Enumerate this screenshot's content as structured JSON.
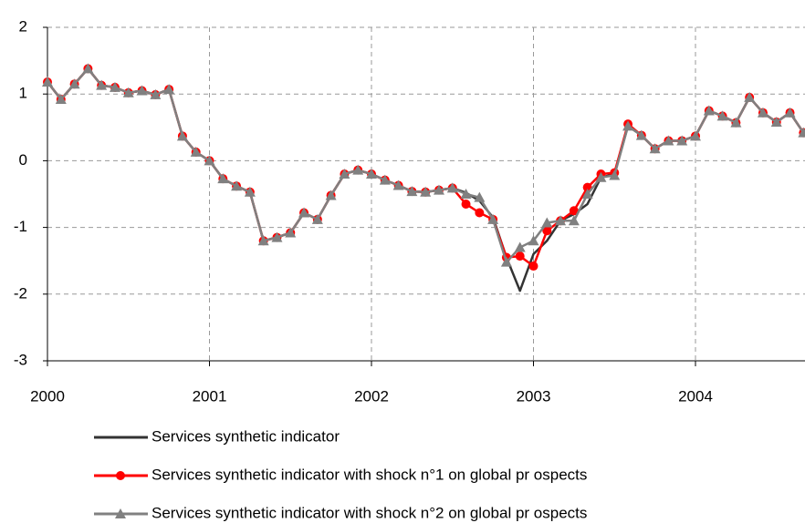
{
  "chart_data": {
    "type": "line",
    "categories": [
      "2000",
      null,
      null,
      null,
      null,
      null,
      null,
      null,
      null,
      null,
      null,
      null,
      "2001",
      null,
      null,
      null,
      null,
      null,
      null,
      null,
      null,
      null,
      null,
      null,
      "2002",
      null,
      null,
      null,
      null,
      null,
      null,
      null,
      null,
      null,
      null,
      null,
      "2003",
      null,
      null,
      null,
      null,
      null,
      null,
      null,
      null,
      null,
      null,
      null,
      "2004",
      null,
      null,
      null,
      null,
      null,
      null,
      null,
      null
    ],
    "series": [
      {
        "name": "Services synthetic indicator",
        "color": "#333333",
        "marker": "none",
        "values": [
          1.18,
          0.92,
          1.15,
          1.38,
          1.13,
          1.1,
          1.02,
          1.05,
          0.99,
          1.07,
          0.37,
          0.13,
          0.0,
          -0.27,
          -0.38,
          -0.47,
          -1.2,
          -1.15,
          -1.08,
          -0.78,
          -0.88,
          -0.52,
          -0.2,
          -0.14,
          -0.2,
          -0.29,
          -0.37,
          -0.46,
          -0.47,
          -0.44,
          -0.41,
          -0.48,
          -0.6,
          -0.85,
          -1.45,
          -1.95,
          -1.4,
          -1.2,
          -0.9,
          -0.8,
          -0.65,
          -0.25,
          -0.2,
          0.52,
          0.38,
          0.18,
          0.3,
          0.3,
          0.37,
          0.75,
          0.67,
          0.57,
          0.95,
          0.72,
          0.58,
          0.72,
          0.42
        ]
      },
      {
        "name": "Services synthetic indicator with shock n°1 on global pr ospects",
        "color": "#ff0000",
        "marker": "circle",
        "values": [
          1.18,
          0.92,
          1.15,
          1.38,
          1.13,
          1.1,
          1.02,
          1.05,
          0.99,
          1.07,
          0.37,
          0.13,
          0.0,
          -0.27,
          -0.38,
          -0.47,
          -1.2,
          -1.15,
          -1.08,
          -0.78,
          -0.88,
          -0.52,
          -0.2,
          -0.14,
          -0.2,
          -0.29,
          -0.37,
          -0.46,
          -0.47,
          -0.44,
          -0.41,
          -0.65,
          -0.78,
          -0.88,
          -1.45,
          -1.43,
          -1.58,
          -1.05,
          -0.9,
          -0.75,
          -0.4,
          -0.2,
          -0.18,
          0.55,
          0.38,
          0.18,
          0.3,
          0.3,
          0.37,
          0.75,
          0.67,
          0.57,
          0.95,
          0.72,
          0.58,
          0.72,
          0.42
        ]
      },
      {
        "name": "Services synthetic indicator with shock n°2 on global pr ospects",
        "color": "#808080",
        "marker": "triangle",
        "values": [
          1.18,
          0.92,
          1.15,
          1.38,
          1.13,
          1.1,
          1.02,
          1.05,
          0.99,
          1.07,
          0.37,
          0.13,
          0.0,
          -0.27,
          -0.38,
          -0.47,
          -1.2,
          -1.15,
          -1.08,
          -0.78,
          -0.88,
          -0.52,
          -0.2,
          -0.14,
          -0.2,
          -0.29,
          -0.37,
          -0.46,
          -0.47,
          -0.44,
          -0.41,
          -0.5,
          -0.55,
          -0.88,
          -1.52,
          -1.3,
          -1.2,
          -0.93,
          -0.9,
          -0.9,
          -0.5,
          -0.25,
          -0.22,
          0.52,
          0.38,
          0.18,
          0.3,
          0.3,
          0.37,
          0.75,
          0.67,
          0.57,
          0.95,
          0.72,
          0.58,
          0.72,
          0.42
        ]
      }
    ],
    "ylim": [
      -3,
      2
    ],
    "yticks": [
      -3,
      -2,
      -1,
      0,
      1,
      2
    ],
    "grid": true,
    "legend": "bottom"
  }
}
